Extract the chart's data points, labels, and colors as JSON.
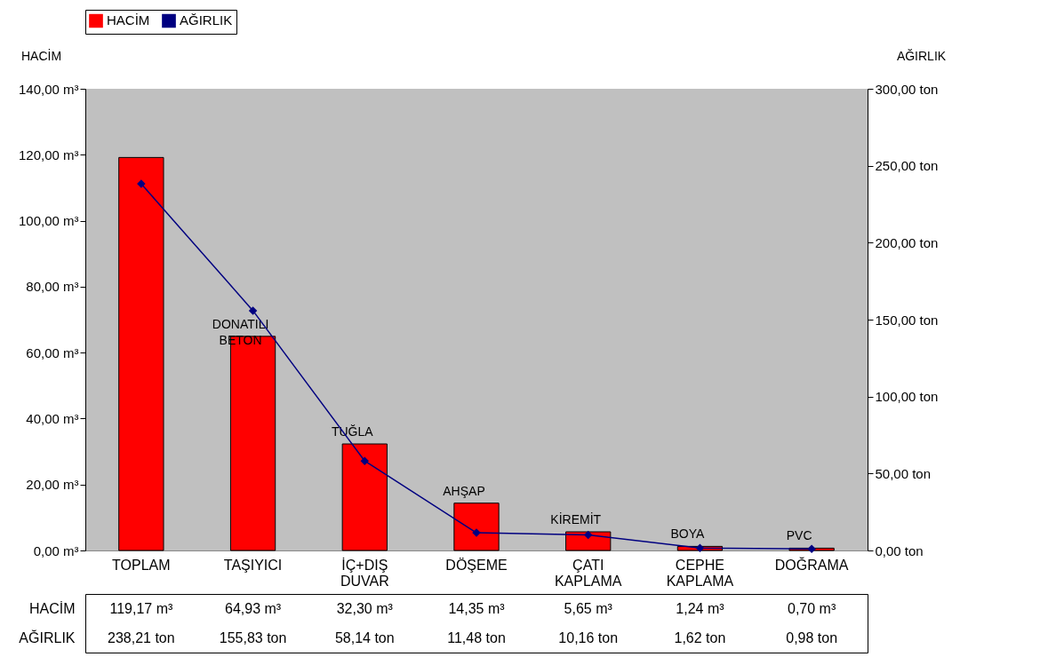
{
  "chart_data": {
    "type": "bar",
    "categories": [
      "TOPLAM",
      "TAŞIYICI",
      "İÇ+DIŞ DUVAR",
      "DÖŞEME",
      "ÇATI KAPLAMA",
      "CEPHE KAPLAMA",
      "DOĞRAMA"
    ],
    "series": [
      {
        "name": "HACİM",
        "color": "#ff0000",
        "values": [
          119.17,
          64.93,
          32.3,
          14.35,
          5.65,
          1.24,
          0.7
        ],
        "value_labels": [
          "119,17 m³",
          "64,93 m³",
          "32,30 m³",
          "14,35 m³",
          "5,65 m³",
          "1,24 m³",
          "0,70 m³"
        ]
      },
      {
        "name": "AĞIRLIK",
        "type": "line",
        "axis": "y2",
        "color": "#000080",
        "marker": "diamond",
        "values": [
          238.21,
          155.83,
          58.14,
          11.48,
          10.16,
          1.62,
          0.98
        ],
        "value_labels": [
          "238,21 ton",
          "155,83 ton",
          "58,14 ton",
          "11,48 ton",
          "10,16 ton",
          "1,62 ton",
          "0,98 ton"
        ]
      }
    ],
    "ylabel": "HACİM",
    "y2label": "AĞIRLIK",
    "ylim": [
      0,
      140
    ],
    "yticks": [
      {
        "value": 0,
        "label": "0,00 m³"
      },
      {
        "value": 20,
        "label": "20,00 m³"
      },
      {
        "value": 40,
        "label": "40,00 m³"
      },
      {
        "value": 60,
        "label": "60,00 m³"
      },
      {
        "value": 80,
        "label": "80,00 m³"
      },
      {
        "value": 100,
        "label": "100,00 m³"
      },
      {
        "value": 120,
        "label": "120,00 m³"
      },
      {
        "value": 140,
        "label": "140,00 m³"
      }
    ],
    "y2lim": [
      0,
      300
    ],
    "y2ticks": [
      {
        "value": 0,
        "label": "0,00 ton"
      },
      {
        "value": 50,
        "label": "50,00 ton"
      },
      {
        "value": 100,
        "label": "100,00 ton"
      },
      {
        "value": 150,
        "label": "150,00 ton"
      },
      {
        "value": 200,
        "label": "200,00 ton"
      },
      {
        "value": 250,
        "label": "250,00 ton"
      },
      {
        "value": 300,
        "label": "300,00 ton"
      }
    ],
    "annotations": [
      {
        "text": "DONATILI BETON",
        "x": "TAŞIYICI",
        "y": 64.93
      },
      {
        "text": "TUĞLA",
        "x": "İÇ+DIŞ DUVAR",
        "y": 32.3
      },
      {
        "text": "AHŞAP",
        "x": "DÖŞEME",
        "y": 14.35
      },
      {
        "text": "KİREMİT",
        "x": "ÇATI KAPLAMA",
        "y": 5.65
      },
      {
        "text": "BOYA",
        "x": "CEPHE KAPLAMA",
        "y": 1.24
      },
      {
        "text": "PVC",
        "x": "DOĞRAMA",
        "y": 0.7
      }
    ],
    "grid": false,
    "legend": "top"
  }
}
